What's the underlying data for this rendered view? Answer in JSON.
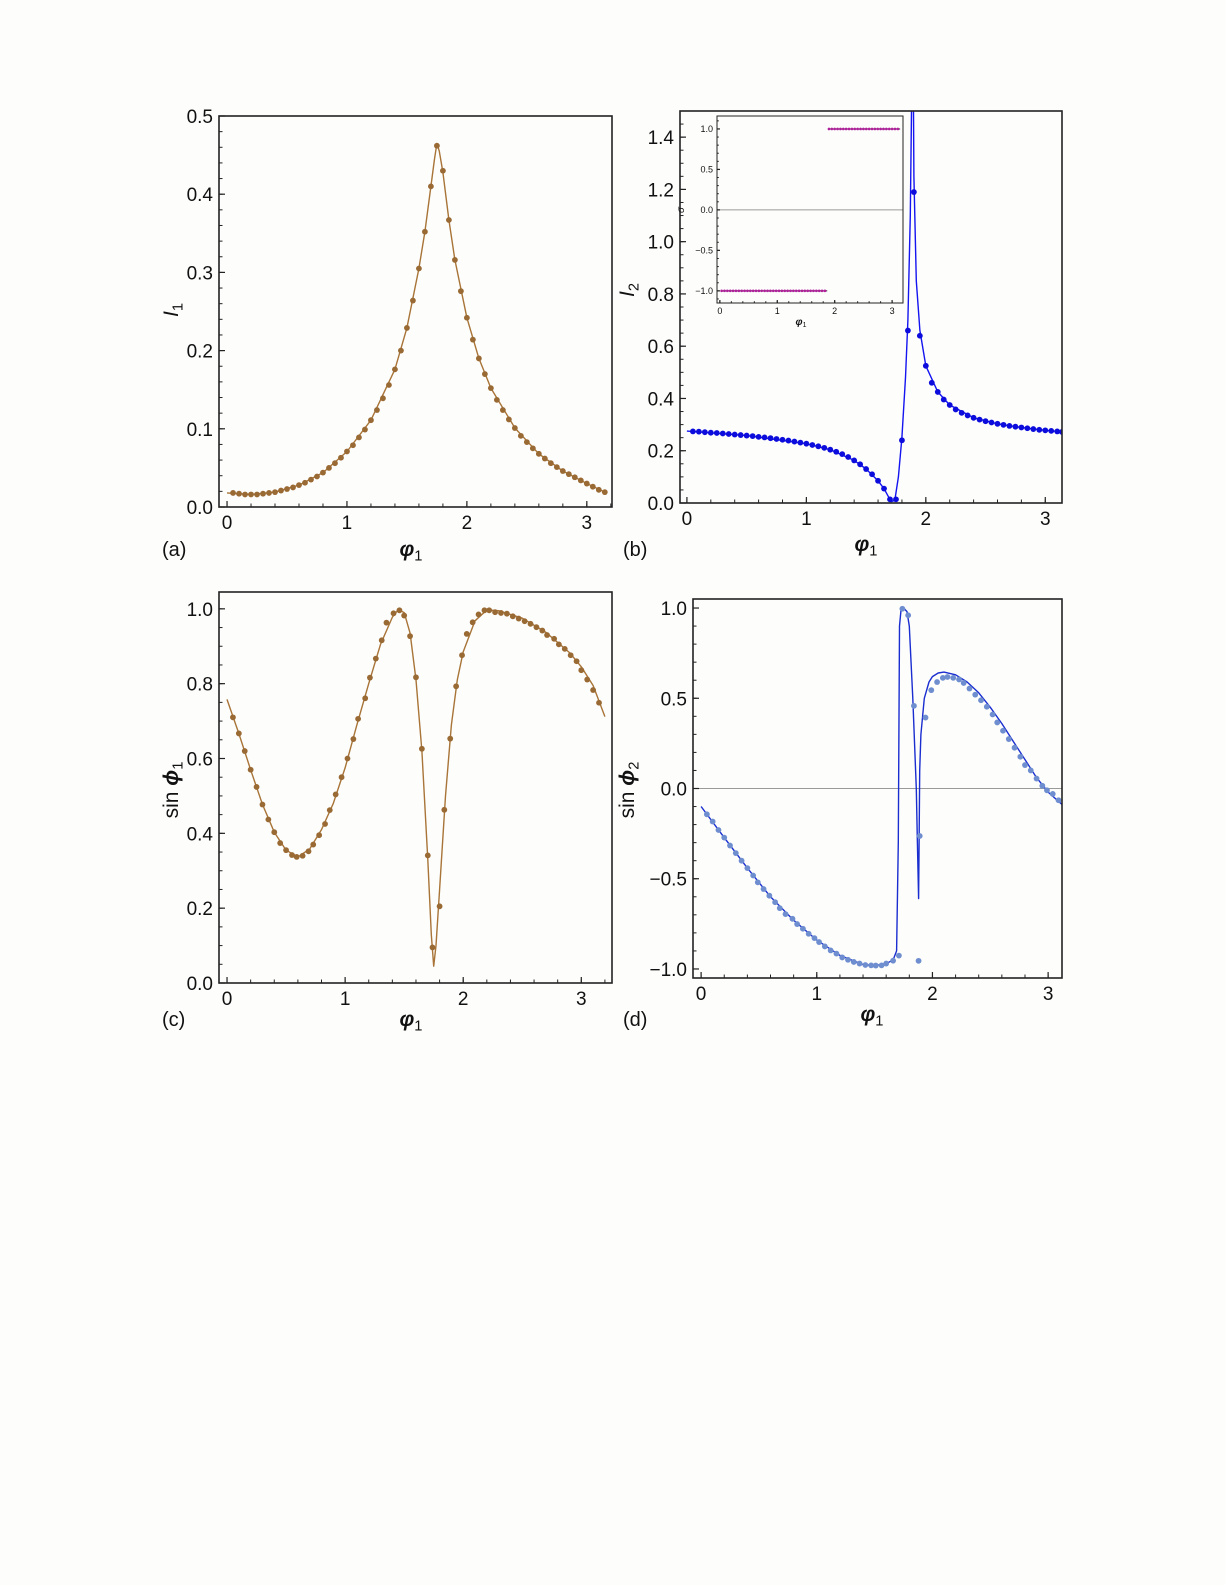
{
  "chart_data": [
    {
      "type": "line",
      "panel_label": "(a)",
      "xlabel": {
        "symbol": "φ",
        "sub": "1"
      },
      "ylabel": {
        "prefix": "",
        "symbol": "I",
        "sub": "1",
        "bold": false
      },
      "xlim": [
        -0.067,
        3.21
      ],
      "ylim": [
        0,
        0.5
      ],
      "xticks": [
        0,
        1,
        2,
        3
      ],
      "xtick_labels": [
        "0",
        "1",
        "2",
        "3"
      ],
      "yticks": [
        0,
        0.1,
        0.2,
        0.3,
        0.4,
        0.5
      ],
      "ytick_labels": [
        "0.0",
        "0.1",
        "0.2",
        "0.3",
        "0.4",
        "0.5"
      ],
      "x_minor_step": 0.2,
      "y_minor_step": 0.02,
      "zero_line": false,
      "colors": {
        "curve": "#a87437",
        "markers": "#9a6a34"
      },
      "curve": {
        "x": [
          0,
          0.2,
          0.4,
          0.6,
          0.8,
          1.0,
          1.2,
          1.4,
          1.5,
          1.6,
          1.65,
          1.7,
          1.73,
          1.75,
          1.77,
          1.8,
          1.85,
          1.9,
          2.0,
          2.1,
          2.2,
          2.4,
          2.6,
          2.8,
          3.0,
          3.15
        ],
        "y": [
          0.018,
          0.016,
          0.019,
          0.028,
          0.044,
          0.071,
          0.111,
          0.176,
          0.229,
          0.305,
          0.352,
          0.41,
          0.445,
          0.465,
          0.455,
          0.428,
          0.367,
          0.316,
          0.242,
          0.19,
          0.152,
          0.101,
          0.068,
          0.046,
          0.03,
          0.019
        ]
      },
      "markers": {
        "x": [
          0.05,
          0.1,
          0.15,
          0.2,
          0.25,
          0.3,
          0.35,
          0.4,
          0.45,
          0.5,
          0.55,
          0.6,
          0.65,
          0.7,
          0.75,
          0.8,
          0.85,
          0.9,
          0.95,
          1.0,
          1.05,
          1.1,
          1.15,
          1.2,
          1.25,
          1.3,
          1.35,
          1.4,
          1.45,
          1.5,
          1.55,
          1.6,
          1.65,
          1.7,
          1.75,
          1.8,
          1.85,
          1.9,
          1.95,
          2.0,
          2.05,
          2.1,
          2.15,
          2.2,
          2.25,
          2.3,
          2.35,
          2.4,
          2.45,
          2.5,
          2.55,
          2.6,
          2.65,
          2.7,
          2.75,
          2.8,
          2.85,
          2.9,
          2.95,
          3.0,
          3.05,
          3.1,
          3.15
        ],
        "y": [
          0.018,
          0.017,
          0.016,
          0.016,
          0.016,
          0.017,
          0.018,
          0.019,
          0.021,
          0.023,
          0.025,
          0.028,
          0.031,
          0.035,
          0.039,
          0.044,
          0.05,
          0.056,
          0.063,
          0.071,
          0.079,
          0.089,
          0.099,
          0.111,
          0.124,
          0.139,
          0.156,
          0.176,
          0.2,
          0.229,
          0.264,
          0.305,
          0.352,
          0.41,
          0.462,
          0.43,
          0.367,
          0.316,
          0.276,
          0.242,
          0.214,
          0.19,
          0.17,
          0.152,
          0.137,
          0.124,
          0.112,
          0.101,
          0.091,
          0.083,
          0.075,
          0.068,
          0.062,
          0.056,
          0.051,
          0.046,
          0.042,
          0.038,
          0.034,
          0.03,
          0.026,
          0.022,
          0.019
        ]
      }
    },
    {
      "type": "line",
      "panel_label": "(b)",
      "xlabel": {
        "symbol": "φ",
        "sub": "1"
      },
      "ylabel": {
        "prefix": "",
        "symbol": "I",
        "sub": "2",
        "bold": false
      },
      "xlim": [
        -0.058,
        3.14
      ],
      "ylim": [
        0,
        1.5
      ],
      "xticks": [
        0,
        1,
        2,
        3
      ],
      "xtick_labels": [
        "0",
        "1",
        "2",
        "3"
      ],
      "yticks": [
        0,
        0.2,
        0.4,
        0.6,
        0.8,
        1.0,
        1.2,
        1.4
      ],
      "ytick_labels": [
        "0.0",
        "0.2",
        "0.4",
        "0.6",
        "0.8",
        "1.0",
        "1.2",
        "1.4"
      ],
      "x_minor_step": 0.2,
      "y_minor_step": 0.05,
      "zero_line": false,
      "colors": {
        "curve": "#1414f0",
        "markers": "#0c0cdc"
      },
      "curve": {
        "x": [
          0,
          0.5,
          1.0,
          1.2,
          1.4,
          1.5,
          1.6,
          1.65,
          1.68,
          1.71,
          1.74,
          1.77,
          1.8,
          1.83,
          1.85,
          1.87,
          1.88,
          1.89,
          1.9,
          1.92,
          1.95,
          2.0,
          2.1,
          2.2,
          2.4,
          2.6,
          2.8,
          3.0,
          3.15
        ],
        "y": [
          0.275,
          0.258,
          0.227,
          0.204,
          0.163,
          0.13,
          0.085,
          0.055,
          0.03,
          0.005,
          0.01,
          0.1,
          0.25,
          0.48,
          0.7,
          1.1,
          1.5,
          2.0,
          1.25,
          0.85,
          0.66,
          0.525,
          0.425,
          0.375,
          0.326,
          0.303,
          0.289,
          0.278,
          0.272
        ]
      },
      "markers": {
        "x": [
          0.05,
          0.1,
          0.15,
          0.2,
          0.25,
          0.3,
          0.35,
          0.4,
          0.45,
          0.5,
          0.55,
          0.6,
          0.65,
          0.7,
          0.75,
          0.8,
          0.85,
          0.9,
          0.95,
          1.0,
          1.05,
          1.1,
          1.15,
          1.2,
          1.25,
          1.3,
          1.35,
          1.4,
          1.45,
          1.5,
          1.55,
          1.6,
          1.65,
          1.7,
          1.75,
          1.8,
          1.85,
          1.9,
          1.95,
          2.0,
          2.05,
          2.1,
          2.15,
          2.2,
          2.25,
          2.3,
          2.35,
          2.4,
          2.45,
          2.5,
          2.55,
          2.6,
          2.65,
          2.7,
          2.75,
          2.8,
          2.85,
          2.9,
          2.95,
          3.0,
          3.05,
          3.1,
          3.14
        ],
        "y": [
          0.274,
          0.273,
          0.271,
          0.269,
          0.268,
          0.266,
          0.264,
          0.262,
          0.26,
          0.258,
          0.256,
          0.253,
          0.251,
          0.248,
          0.245,
          0.242,
          0.239,
          0.235,
          0.231,
          0.227,
          0.222,
          0.217,
          0.211,
          0.204,
          0.196,
          0.187,
          0.176,
          0.163,
          0.148,
          0.13,
          0.11,
          0.085,
          0.055,
          0.014,
          0.014,
          0.24,
          0.66,
          1.19,
          0.64,
          0.525,
          0.46,
          0.425,
          0.396,
          0.375,
          0.358,
          0.345,
          0.335,
          0.326,
          0.319,
          0.313,
          0.308,
          0.303,
          0.299,
          0.295,
          0.292,
          0.289,
          0.286,
          0.283,
          0.28,
          0.278,
          0.276,
          0.274,
          0.272
        ]
      },
      "inset": {
        "type": "scatter",
        "xlabel": {
          "symbol": "φ",
          "sub": "1"
        },
        "ylabel": {
          "prefix": "",
          "symbol": "σ",
          "sub": "",
          "bold": false
        },
        "xlim": [
          -0.05,
          3.19
        ],
        "ylim": [
          -1.15,
          1.16
        ],
        "xticks": [
          0,
          1,
          2,
          3
        ],
        "xtick_labels": [
          "0",
          "1",
          "2",
          "3"
        ],
        "yticks": [
          -1,
          -0.5,
          0,
          0.5,
          1
        ],
        "ytick_labels": [
          "−1.0",
          "−0.5",
          "0.0",
          "0.5",
          "1.0"
        ],
        "x_minor_step": 0.2,
        "y_minor_step": 0.1,
        "zero_line": true,
        "colors": {
          "line": "#3a0a3a",
          "markers": "#b0209a"
        },
        "segments": [
          {
            "from": 0.03,
            "to": 1.87,
            "value": -1,
            "step": 0.05
          },
          {
            "from": 1.9,
            "to": 3.14,
            "value": 1,
            "step": 0.05
          }
        ]
      }
    },
    {
      "type": "line",
      "panel_label": "(c)",
      "xlabel": {
        "symbol": "φ",
        "sub": "1"
      },
      "ylabel": {
        "prefix": "sin ",
        "symbol": "ϕ",
        "sub": "1",
        "bold": true
      },
      "xlim": [
        -0.068,
        3.26
      ],
      "ylim": [
        0,
        1.045
      ],
      "xticks": [
        0,
        1,
        2,
        3
      ],
      "xtick_labels": [
        "0",
        "1",
        "2",
        "3"
      ],
      "yticks": [
        0,
        0.2,
        0.4,
        0.6,
        0.8,
        1.0
      ],
      "ytick_labels": [
        "0.0",
        "0.2",
        "0.4",
        "0.6",
        "0.8",
        "1.0"
      ],
      "x_minor_step": 0.2,
      "y_minor_step": 0.05,
      "zero_line": false,
      "colors": {
        "curve": "#a87437",
        "markers": "#9a6a34"
      },
      "curve": {
        "x": [
          0,
          0.1,
          0.2,
          0.3,
          0.4,
          0.5,
          0.6,
          0.7,
          0.8,
          0.9,
          1.0,
          1.1,
          1.2,
          1.3,
          1.4,
          1.45,
          1.5,
          1.55,
          1.6,
          1.65,
          1.7,
          1.73,
          1.75,
          1.77,
          1.8,
          1.85,
          1.9,
          1.95,
          2.0,
          2.1,
          2.2,
          2.3,
          2.5,
          2.7,
          2.9,
          3.0,
          3.1,
          3.2
        ],
        "y": [
          0.758,
          0.667,
          0.57,
          0.477,
          0.403,
          0.355,
          0.337,
          0.358,
          0.41,
          0.48,
          0.575,
          0.69,
          0.8,
          0.905,
          0.978,
          0.998,
          0.99,
          0.935,
          0.81,
          0.62,
          0.33,
          0.13,
          0.045,
          0.1,
          0.25,
          0.5,
          0.69,
          0.81,
          0.885,
          0.968,
          0.997,
          0.995,
          0.975,
          0.937,
          0.883,
          0.845,
          0.795,
          0.712
        ]
      },
      "markers": {
        "x": [
          0.05,
          0.1,
          0.15,
          0.2,
          0.25,
          0.3,
          0.35,
          0.4,
          0.45,
          0.5,
          0.55,
          0.59,
          0.64,
          0.69,
          0.73,
          0.78,
          0.83,
          0.87,
          0.92,
          0.97,
          1.02,
          1.07,
          1.11,
          1.17,
          1.21,
          1.26,
          1.31,
          1.35,
          1.41,
          1.46,
          1.5,
          1.55,
          1.6,
          1.65,
          1.7,
          1.74,
          1.8,
          1.84,
          1.89,
          1.94,
          1.99,
          2.03,
          2.08,
          2.13,
          2.18,
          2.22,
          2.27,
          2.32,
          2.37,
          2.42,
          2.47,
          2.52,
          2.57,
          2.62,
          2.67,
          2.71,
          2.77,
          2.81,
          2.86,
          2.91,
          2.96,
          3.0,
          3.05,
          3.1,
          3.15
        ],
        "y": [
          0.71,
          0.667,
          0.62,
          0.57,
          0.524,
          0.477,
          0.437,
          0.403,
          0.374,
          0.355,
          0.342,
          0.337,
          0.34,
          0.352,
          0.37,
          0.395,
          0.425,
          0.462,
          0.504,
          0.55,
          0.6,
          0.652,
          0.706,
          0.761,
          0.816,
          0.867,
          0.916,
          0.963,
          0.988,
          0.996,
          0.982,
          0.927,
          0.817,
          0.626,
          0.341,
          0.095,
          0.205,
          0.463,
          0.653,
          0.793,
          0.876,
          0.933,
          0.964,
          0.985,
          0.996,
          0.996,
          0.991,
          0.989,
          0.987,
          0.98,
          0.974,
          0.967,
          0.96,
          0.951,
          0.942,
          0.93,
          0.92,
          0.905,
          0.893,
          0.876,
          0.86,
          0.836,
          0.811,
          0.783,
          0.749
        ]
      }
    },
    {
      "type": "line",
      "panel_label": "(d)",
      "xlabel": {
        "symbol": "φ",
        "sub": "1"
      },
      "ylabel": {
        "prefix": "sin ",
        "symbol": "ϕ",
        "sub": "2",
        "bold": true
      },
      "xlim": [
        -0.07,
        3.12
      ],
      "ylim": [
        -1.05,
        1.05
      ],
      "xticks": [
        0,
        1,
        2,
        3
      ],
      "xtick_labels": [
        "0",
        "1",
        "2",
        "3"
      ],
      "yticks": [
        -1,
        -0.5,
        0,
        0.5,
        1
      ],
      "ytick_labels": [
        "−1.0",
        "−0.5",
        "0.0",
        "0.5",
        "1.0"
      ],
      "x_minor_step": 0.2,
      "y_minor_step": 0.1,
      "zero_line": true,
      "colors": {
        "curve": "#1a2ed0",
        "markers": "#6f8ecf"
      },
      "curve": {
        "x": [
          0,
          0.2,
          0.4,
          0.6,
          0.8,
          1.0,
          1.2,
          1.4,
          1.5,
          1.6,
          1.66,
          1.69,
          1.705,
          1.715,
          1.73,
          1.75,
          1.78,
          1.8,
          1.83,
          1.86,
          1.87,
          1.88,
          1.885,
          1.89,
          1.9,
          1.93,
          1.97,
          2.0,
          2.05,
          2.1,
          2.2,
          2.3,
          2.4,
          2.5,
          2.6,
          2.7,
          2.8,
          2.9,
          3.0,
          3.14
        ],
        "y": [
          -0.1,
          -0.272,
          -0.441,
          -0.6,
          -0.73,
          -0.84,
          -0.925,
          -0.975,
          -0.982,
          -0.97,
          -0.95,
          -0.9,
          -0.3,
          0.9,
          1.0,
          1.0,
          0.98,
          0.9,
          0.5,
          0.0,
          -0.3,
          -0.61,
          -0.3,
          0.1,
          0.3,
          0.5,
          0.59,
          0.62,
          0.64,
          0.645,
          0.63,
          0.59,
          0.53,
          0.45,
          0.36,
          0.26,
          0.16,
          0.06,
          -0.02,
          -0.1
        ]
      },
      "markers": {
        "x": [
          0.05,
          0.1,
          0.15,
          0.2,
          0.25,
          0.3,
          0.35,
          0.4,
          0.45,
          0.49,
          0.54,
          0.59,
          0.64,
          0.68,
          0.73,
          0.79,
          0.83,
          0.88,
          0.93,
          0.98,
          1.02,
          1.07,
          1.12,
          1.17,
          1.22,
          1.27,
          1.32,
          1.37,
          1.42,
          1.47,
          1.51,
          1.56,
          1.6,
          1.66,
          1.71,
          1.74,
          1.79,
          1.84,
          1.88,
          1.89,
          1.94,
          1.99,
          2.04,
          2.09,
          2.13,
          2.18,
          2.23,
          2.27,
          2.32,
          2.37,
          2.42,
          2.47,
          2.52,
          2.56,
          2.61,
          2.66,
          2.71,
          2.76,
          2.8,
          2.85,
          2.9,
          2.95,
          2.99,
          3.04,
          3.09,
          3.14
        ],
        "y": [
          -0.143,
          -0.183,
          -0.23,
          -0.272,
          -0.316,
          -0.358,
          -0.4,
          -0.441,
          -0.482,
          -0.52,
          -0.557,
          -0.594,
          -0.63,
          -0.663,
          -0.696,
          -0.722,
          -0.751,
          -0.777,
          -0.805,
          -0.829,
          -0.851,
          -0.875,
          -0.897,
          -0.915,
          -0.936,
          -0.949,
          -0.961,
          -0.97,
          -0.978,
          -0.98,
          -0.981,
          -0.98,
          -0.97,
          -0.954,
          -0.926,
          0.996,
          0.96,
          0.458,
          -0.955,
          -0.263,
          0.393,
          0.545,
          0.59,
          0.613,
          0.618,
          0.613,
          0.604,
          0.585,
          0.554,
          0.52,
          0.489,
          0.453,
          0.41,
          0.366,
          0.32,
          0.274,
          0.226,
          0.176,
          0.13,
          0.1,
          0.055,
          0.015,
          -0.01,
          -0.03,
          -0.065,
          -0.1
        ]
      }
    }
  ]
}
